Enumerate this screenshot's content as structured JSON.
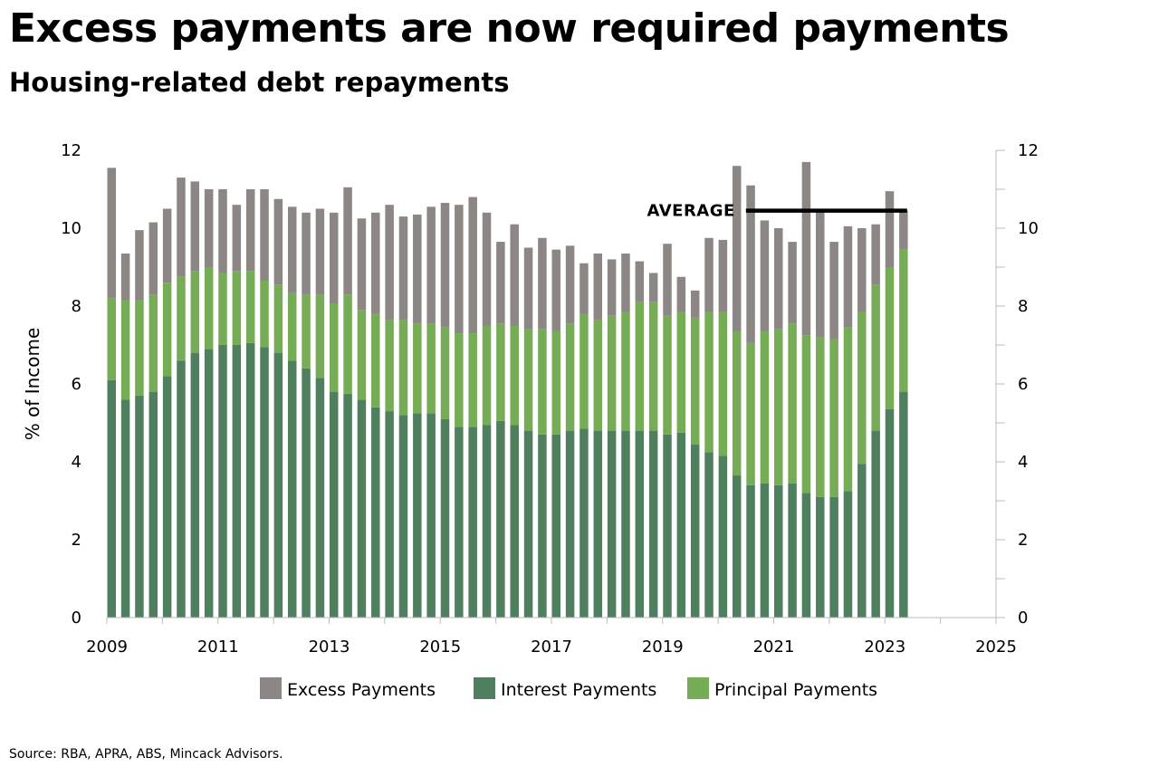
{
  "title": "Excess payments are now required payments",
  "subtitle": "Housing-related debt repayments",
  "source": "Source: RBA, APRA, ABS, Mincack Advisors.",
  "chart_data": {
    "type": "bar",
    "stacked": true,
    "ylabel": "% of Income",
    "ylim": [
      0,
      12
    ],
    "yticks": [
      0,
      2,
      4,
      6,
      8,
      10,
      12
    ],
    "secondary_ylim": [
      0,
      12
    ],
    "xlim": [
      2009,
      2025
    ],
    "xticks": [
      "2009",
      "2011",
      "2013",
      "2015",
      "2017",
      "2019",
      "2021",
      "2023",
      "2025"
    ],
    "x": [
      2009.0,
      2009.25,
      2009.5,
      2009.75,
      2010.0,
      2010.25,
      2010.5,
      2010.75,
      2011.0,
      2011.25,
      2011.5,
      2011.75,
      2012.0,
      2012.25,
      2012.5,
      2012.75,
      2013.0,
      2013.25,
      2013.5,
      2013.75,
      2014.0,
      2014.25,
      2014.5,
      2014.75,
      2015.0,
      2015.25,
      2015.5,
      2015.75,
      2016.0,
      2016.25,
      2016.5,
      2016.75,
      2017.0,
      2017.25,
      2017.5,
      2017.75,
      2018.0,
      2018.25,
      2018.5,
      2018.75,
      2019.0,
      2019.25,
      2019.5,
      2019.75,
      2020.0,
      2020.25,
      2020.5,
      2020.75,
      2021.0,
      2021.25,
      2021.5,
      2021.75,
      2022.0,
      2022.25,
      2022.5,
      2022.75,
      2023.0,
      2023.25
    ],
    "series": [
      {
        "name": "Interest Payments",
        "color": "#4f7f5f",
        "values": [
          6.1,
          5.6,
          5.7,
          5.8,
          6.2,
          6.6,
          6.8,
          6.9,
          7.0,
          7.0,
          7.05,
          6.95,
          6.8,
          6.6,
          6.4,
          6.15,
          5.8,
          5.75,
          5.6,
          5.4,
          5.3,
          5.2,
          5.25,
          5.25,
          5.1,
          4.9,
          4.9,
          4.95,
          5.05,
          4.95,
          4.8,
          4.7,
          4.7,
          4.8,
          4.85,
          4.8,
          4.8,
          4.8,
          4.8,
          4.8,
          4.7,
          4.75,
          4.45,
          4.25,
          4.15,
          3.65,
          3.4,
          3.45,
          3.4,
          3.45,
          3.2,
          3.1,
          3.1,
          3.25,
          3.95,
          4.8,
          5.35,
          5.8
        ]
      },
      {
        "name": "Principal Payments",
        "color": "#76ac56",
        "values": [
          2.1,
          2.55,
          2.45,
          2.5,
          2.4,
          2.15,
          2.1,
          2.1,
          1.85,
          1.9,
          1.85,
          1.7,
          1.75,
          1.75,
          1.9,
          2.15,
          2.25,
          2.55,
          2.3,
          2.4,
          2.35,
          2.45,
          2.3,
          2.3,
          2.35,
          2.4,
          2.4,
          2.55,
          2.5,
          2.55,
          2.6,
          2.7,
          2.65,
          2.75,
          2.95,
          2.85,
          2.95,
          3.05,
          3.3,
          3.3,
          3.05,
          3.1,
          3.25,
          3.6,
          3.7,
          3.7,
          3.65,
          3.9,
          4.0,
          4.1,
          4.05,
          4.1,
          4.05,
          4.2,
          3.9,
          3.75,
          3.65,
          3.65
        ]
      },
      {
        "name": "Excess Payments",
        "color": "#8c8684",
        "values": [
          3.35,
          1.2,
          1.8,
          1.85,
          1.9,
          2.55,
          2.3,
          2.0,
          2.15,
          1.7,
          2.1,
          2.35,
          2.2,
          2.2,
          2.1,
          2.2,
          2.35,
          2.75,
          2.35,
          2.6,
          2.95,
          2.65,
          2.8,
          3.0,
          3.2,
          3.3,
          3.5,
          2.9,
          2.1,
          2.6,
          2.1,
          2.35,
          2.1,
          2.0,
          1.3,
          1.7,
          1.45,
          1.5,
          1.05,
          0.75,
          1.85,
          0.9,
          0.7,
          1.9,
          1.85,
          4.25,
          4.05,
          2.85,
          2.6,
          2.1,
          4.45,
          3.3,
          2.5,
          2.6,
          2.15,
          1.55,
          1.95,
          1.0
        ]
      }
    ],
    "legend_order": [
      "Excess Payments",
      "Interest Payments",
      "Principal Payments"
    ],
    "legend_placement": "bottom",
    "annotations": [
      {
        "text": "AVERAGE",
        "y": 10.45,
        "x_start": 2020.5,
        "x_end": 2023.4
      }
    ],
    "grid": false
  }
}
